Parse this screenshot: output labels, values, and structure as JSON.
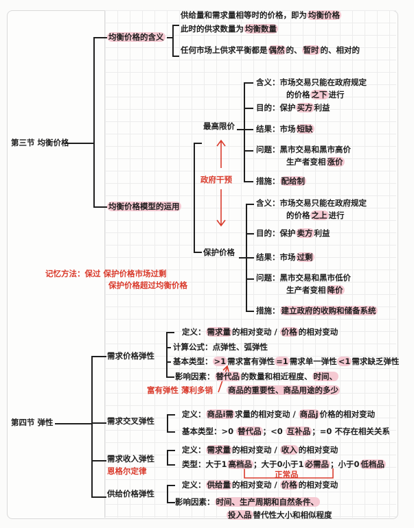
{
  "section3": {
    "title": "第三节 均衡价格",
    "meaning": {
      "label": "均衡价格的含义",
      "lines": [
        [
          {
            "t": "供给量和需求量相等时的价格，即为"
          },
          {
            "t": "均衡价格",
            "hl": true
          }
        ],
        [
          {
            "t": "此时的供求数量为"
          },
          {
            "t": "均衡数量",
            "hl": true
          }
        ],
        [
          {
            "t": "任何市场上供求平衡都是"
          },
          {
            "t": "偶然",
            "hl": true
          },
          {
            "t": "的、"
          },
          {
            "t": "暂时",
            "hl": true
          },
          {
            "t": "的、相对的"
          }
        ]
      ]
    },
    "application": {
      "label": "均衡价格模型的运用",
      "intervention": "政府干预",
      "ceiling": {
        "label": "最高限价",
        "items": [
          [
            {
              "t": "含义：市场交易只能在政府规定"
            }
          ],
          [
            {
              "t": "的价格"
            },
            {
              "t": "之下",
              "hl": true
            },
            {
              "t": "进行"
            }
          ],
          [
            {
              "t": "目的：保护"
            },
            {
              "t": "买方",
              "hl": true
            },
            {
              "t": "利益"
            }
          ],
          [
            {
              "t": "结果：市场"
            },
            {
              "t": "短缺",
              "hl": true
            }
          ],
          [
            {
              "t": "问题：黑市交易和黑市高价"
            }
          ],
          [
            {
              "t": "生产者变相"
            },
            {
              "t": "涨价",
              "hl": true
            }
          ],
          [
            {
              "t": "措施："
            },
            {
              "t": "配给制",
              "hl": true
            }
          ]
        ]
      },
      "floor": {
        "label": "保护价格",
        "items": [
          [
            {
              "t": "含义：市场交易只能在政府规定"
            }
          ],
          [
            {
              "t": "的价格"
            },
            {
              "t": "之上",
              "hl": true
            },
            {
              "t": "进行"
            }
          ],
          [
            {
              "t": "目的：保护"
            },
            {
              "t": "卖方",
              "hl": true
            },
            {
              "t": "利益"
            }
          ],
          [
            {
              "t": "结果：市场"
            },
            {
              "t": "过剩",
              "hl": true
            }
          ],
          [
            {
              "t": "问题：黑市交易和黑市低价"
            }
          ],
          [
            {
              "t": "生产者变相"
            },
            {
              "t": "降价",
              "hl": true
            }
          ],
          [
            {
              "t": "措施："
            },
            {
              "t": "建立政府的收购和储备系统",
              "hl": true
            }
          ]
        ]
      }
    },
    "memory_tip": [
      "记忆方法：保过 保护价格市场过剩",
      "保护价格超过均衡价格"
    ]
  },
  "section4": {
    "title": "第四节 弹性",
    "demand_price": {
      "label": "需求价格弹性",
      "items": [
        [
          {
            "t": "定义："
          },
          {
            "t": "需求量",
            "hl": true
          },
          {
            "t": "的相对变动 / "
          },
          {
            "t": "价格",
            "hl": true
          },
          {
            "t": "的相对变动"
          }
        ],
        [
          {
            "t": "计算公式：点弹性、弧弹性"
          }
        ],
        [
          {
            "t": "基本类型："
          },
          {
            "t": ">1",
            "hl": true
          },
          {
            "t": "需求富有弹性"
          },
          {
            "t": "=1",
            "hl": true
          },
          {
            "t": "需求单一弹性"
          },
          {
            "t": "<1",
            "hl": true
          },
          {
            "t": "需求缺乏弹性"
          }
        ],
        [
          {
            "t": "影响因素："
          },
          {
            "t": "替代品",
            "hl": true
          },
          {
            "t": "的数量和相近程度、"
          },
          {
            "t": "时间、",
            "hl": true
          }
        ],
        [
          {
            "t": "商品的重要性、商品用途的多少",
            "hl": true
          }
        ]
      ],
      "note": "富有弹性 薄利多销"
    },
    "cross": {
      "label": "需求交叉弹性",
      "items": [
        [
          {
            "t": "定义："
          },
          {
            "t": "商品i需",
            "hl": true
          },
          {
            "t": "求量的相对变动 / "
          },
          {
            "t": "商品j",
            "hl": true
          },
          {
            "t": "价格的相对变动"
          }
        ],
        [
          {
            "t": "基本类型：>0 "
          },
          {
            "t": "替代品",
            "hl": true
          },
          {
            "t": "；<0 "
          },
          {
            "t": "互补品",
            "hl": true
          },
          {
            "t": "；=0 不存在相关关系"
          }
        ]
      ]
    },
    "income": {
      "label": "需求收入弹性",
      "note": "恩格尔定律",
      "items": [
        [
          {
            "t": "定义："
          },
          {
            "t": "需求量",
            "hl": true
          },
          {
            "t": "的相对变动 / "
          },
          {
            "t": "收入",
            "hl": true
          },
          {
            "t": "的相对变动"
          }
        ],
        [
          {
            "t": "类型：大于1"
          },
          {
            "t": "高档品",
            "hl": true
          },
          {
            "t": "；大于0小于1"
          },
          {
            "t": "必需品",
            "hl": true
          },
          {
            "t": "；小于0"
          },
          {
            "t": "低档品",
            "hl": true
          }
        ]
      ],
      "normal_goods": "正常品"
    },
    "supply_price": {
      "label": "供给价格弹性",
      "items": [
        [
          {
            "t": "定义："
          },
          {
            "t": "供给量",
            "hl": true
          },
          {
            "t": "的相对变动 / "
          },
          {
            "t": "价格",
            "hl": true
          },
          {
            "t": "的相对变动"
          }
        ],
        [
          {
            "t": "影响因素："
          },
          {
            "t": "时间、生产周期和自然条件、",
            "hl": true
          }
        ],
        [
          {
            "t": "投入品",
            "hl": true
          },
          {
            "t": "替代性大小和相似程度"
          }
        ]
      ]
    }
  },
  "colors": {
    "highlight": "#f5c9d2",
    "annotation": "#d93a2b",
    "ink": "#1d1d1d"
  }
}
